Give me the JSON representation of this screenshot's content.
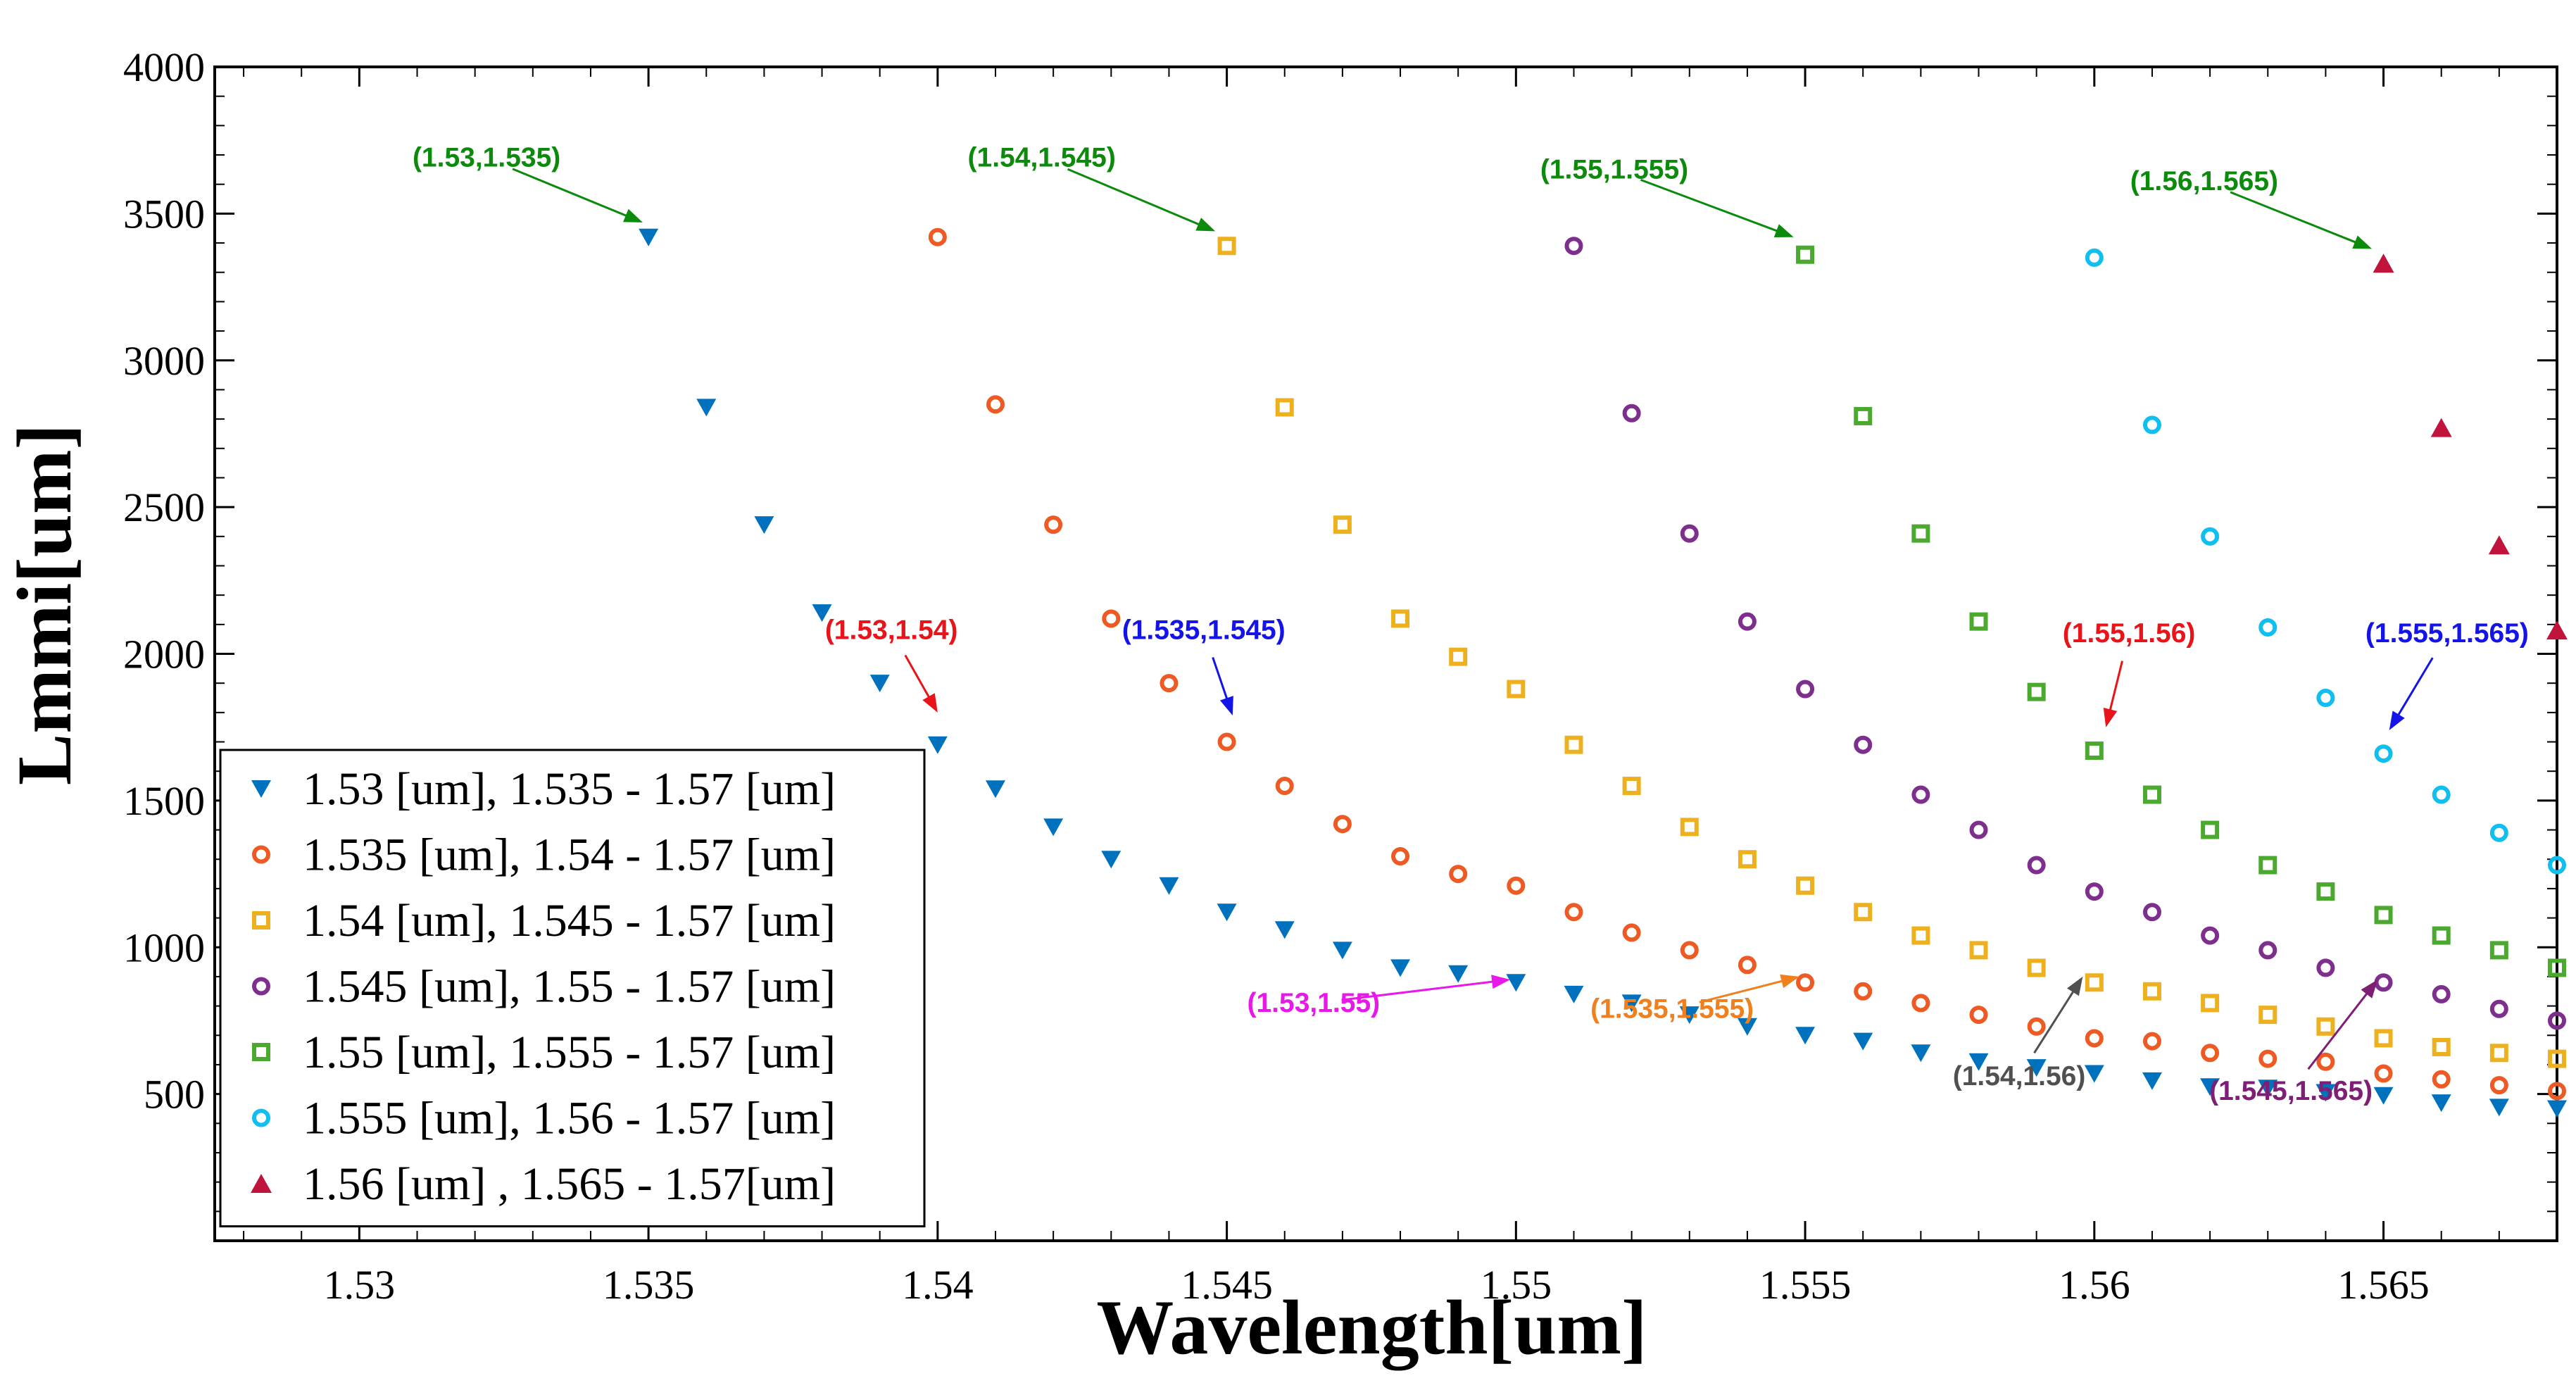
{
  "chart_data": {
    "type": "scatter",
    "title": "",
    "xlabel": "Wavelength[um]",
    "ylabel": "Lmmi[um]",
    "xlim": [
      1.5275,
      1.568
    ],
    "ylim": [
      0,
      4000
    ],
    "grid": false,
    "legend_position": "bottom-left",
    "x_ticks": [
      1.53,
      1.535,
      1.54,
      1.545,
      1.55,
      1.555,
      1.56,
      1.565
    ],
    "x_tick_labels": [
      "1.53",
      "1.535",
      "1.54",
      "1.545",
      "1.55",
      "1.555",
      "1.56",
      "1.565"
    ],
    "y_ticks": [
      500,
      1000,
      1500,
      2000,
      2500,
      3000,
      3500,
      4000
    ],
    "y_tick_labels": [
      "500",
      "1000",
      "1500",
      "2000",
      "2500",
      "3000",
      "3500",
      "4000"
    ],
    "series": [
      {
        "name": "1.53 [um], 1.535 - 1.57 [um]",
        "marker": "triangle-down",
        "color": "#0072BD",
        "x": [
          1.535,
          1.536,
          1.537,
          1.538,
          1.539,
          1.54,
          1.541,
          1.542,
          1.543,
          1.544,
          1.545,
          1.546,
          1.547,
          1.548,
          1.549,
          1.55,
          1.551,
          1.552,
          1.553,
          1.554,
          1.555,
          1.556,
          1.557,
          1.558,
          1.559,
          1.56,
          1.561,
          1.562,
          1.563,
          1.564,
          1.565,
          1.566,
          1.567,
          1.568
        ],
        "y": [
          3420,
          2840,
          2440,
          2140,
          1900,
          1690,
          1540,
          1410,
          1300,
          1210,
          1120,
          1060,
          990,
          930,
          910,
          880,
          840,
          810,
          770,
          730,
          700,
          680,
          640,
          610,
          590,
          570,
          545,
          525,
          520,
          505,
          495,
          470,
          455,
          450
        ]
      },
      {
        "name": "1.535 [um], 1.54 - 1.57 [um]",
        "marker": "circle",
        "color": "#EE5A24",
        "x": [
          1.54,
          1.541,
          1.542,
          1.543,
          1.544,
          1.545,
          1.546,
          1.547,
          1.548,
          1.549,
          1.55,
          1.551,
          1.552,
          1.553,
          1.554,
          1.555,
          1.556,
          1.557,
          1.558,
          1.559,
          1.56,
          1.561,
          1.562,
          1.563,
          1.564,
          1.565,
          1.566,
          1.567,
          1.568
        ],
        "y": [
          3420,
          2850,
          2440,
          2120,
          1900,
          1700,
          1550,
          1420,
          1310,
          1250,
          1210,
          1120,
          1050,
          990,
          940,
          880,
          850,
          810,
          770,
          730,
          690,
          680,
          640,
          620,
          610,
          570,
          550,
          530,
          510
        ]
      },
      {
        "name": "1.54 [um], 1.545 - 1.57 [um]",
        "marker": "square",
        "color": "#EDB120",
        "x": [
          1.545,
          1.546,
          1.547,
          1.548,
          1.549,
          1.55,
          1.551,
          1.552,
          1.553,
          1.554,
          1.555,
          1.556,
          1.557,
          1.558,
          1.559,
          1.56,
          1.561,
          1.562,
          1.563,
          1.564,
          1.565,
          1.566,
          1.567,
          1.568
        ],
        "y": [
          3390,
          2840,
          2440,
          2120,
          1990,
          1880,
          1690,
          1550,
          1410,
          1300,
          1210,
          1120,
          1040,
          990,
          930,
          880,
          850,
          810,
          770,
          730,
          690,
          660,
          640,
          620
        ]
      },
      {
        "name": "1.545 [um], 1.55 - 1.57 [um]",
        "marker": "circle",
        "color": "#7E2F8E",
        "x": [
          1.551,
          1.552,
          1.553,
          1.554,
          1.555,
          1.556,
          1.557,
          1.558,
          1.559,
          1.56,
          1.561,
          1.562,
          1.563,
          1.564,
          1.565,
          1.566,
          1.567,
          1.568
        ],
        "y": [
          3390,
          2820,
          2410,
          2110,
          1880,
          1690,
          1520,
          1400,
          1280,
          1190,
          1120,
          1040,
          990,
          930,
          880,
          840,
          790,
          750
        ]
      },
      {
        "name": "1.55 [um], 1.555 - 1.57 [um]",
        "marker": "square",
        "color": "#4CA92F",
        "x": [
          1.555,
          1.556,
          1.557,
          1.558,
          1.559,
          1.56,
          1.561,
          1.562,
          1.563,
          1.564,
          1.565,
          1.566,
          1.567,
          1.568
        ],
        "y": [
          3360,
          2810,
          2410,
          2110,
          1870,
          1670,
          1520,
          1400,
          1280,
          1190,
          1110,
          1040,
          990,
          930
        ]
      },
      {
        "name": "1.555 [um], 1.56 - 1.57 [um]",
        "marker": "circle",
        "color": "#10BEEF",
        "x": [
          1.56,
          1.561,
          1.562,
          1.563,
          1.564,
          1.565,
          1.566,
          1.567,
          1.568
        ],
        "y": [
          3350,
          2780,
          2400,
          2090,
          1850,
          1660,
          1520,
          1390,
          1280
        ]
      },
      {
        "name": "1.56 [um] , 1.565 - 1.57[um]",
        "marker": "triangle-up",
        "color": "#C0143C",
        "x": [
          1.565,
          1.566,
          1.567,
          1.568
        ],
        "y": [
          3330,
          2770,
          2370,
          2080
        ]
      }
    ],
    "annotations": [
      {
        "text": "(1.53,1.535)",
        "color": "#0B8A0B",
        "text_x": 1.5322,
        "text_y": 3660,
        "target_x": 1.5349,
        "target_y": 3470
      },
      {
        "text": "(1.54,1.545)",
        "color": "#0B8A0B",
        "text_x": 1.5418,
        "text_y": 3660,
        "target_x": 1.5448,
        "target_y": 3440
      },
      {
        "text": "(1.55,1.555)",
        "color": "#0B8A0B",
        "text_x": 1.5517,
        "text_y": 3620,
        "target_x": 1.5548,
        "target_y": 3420
      },
      {
        "text": "(1.56,1.565)",
        "color": "#0B8A0B",
        "text_x": 1.5619,
        "text_y": 3580,
        "target_x": 1.5648,
        "target_y": 3380
      },
      {
        "text": "(1.53,1.54)",
        "color": "#E8141A",
        "text_x": 1.5392,
        "text_y": 2050,
        "target_x": 1.54,
        "target_y": 1800
      },
      {
        "text": "(1.535,1.545)",
        "color": "#1414E6",
        "text_x": 1.5446,
        "text_y": 2050,
        "target_x": 1.5451,
        "target_y": 1790
      },
      {
        "text": "(1.55,1.56)",
        "color": "#E8141A",
        "text_x": 1.5606,
        "text_y": 2040,
        "target_x": 1.5602,
        "target_y": 1750
      },
      {
        "text": "(1.555,1.565)",
        "color": "#1414E6",
        "text_x": 1.5661,
        "text_y": 2040,
        "target_x": 1.5651,
        "target_y": 1740
      },
      {
        "text": "(1.53,1.55)",
        "color": "#E818E8",
        "text_x": 1.5465,
        "text_y": 780,
        "target_x": 1.5499,
        "target_y": 890
      },
      {
        "text": "(1.535,1.555)",
        "color": "#F0801E",
        "text_x": 1.5527,
        "text_y": 760,
        "target_x": 1.5549,
        "target_y": 900
      },
      {
        "text": "(1.54,1.56)",
        "color": "#505050",
        "text_x": 1.5587,
        "text_y": 530,
        "target_x": 1.5598,
        "target_y": 900
      },
      {
        "text": "(1.545,1.565)",
        "color": "#7E1E74",
        "text_x": 1.5634,
        "text_y": 480,
        "target_x": 1.5649,
        "target_y": 890
      }
    ]
  }
}
